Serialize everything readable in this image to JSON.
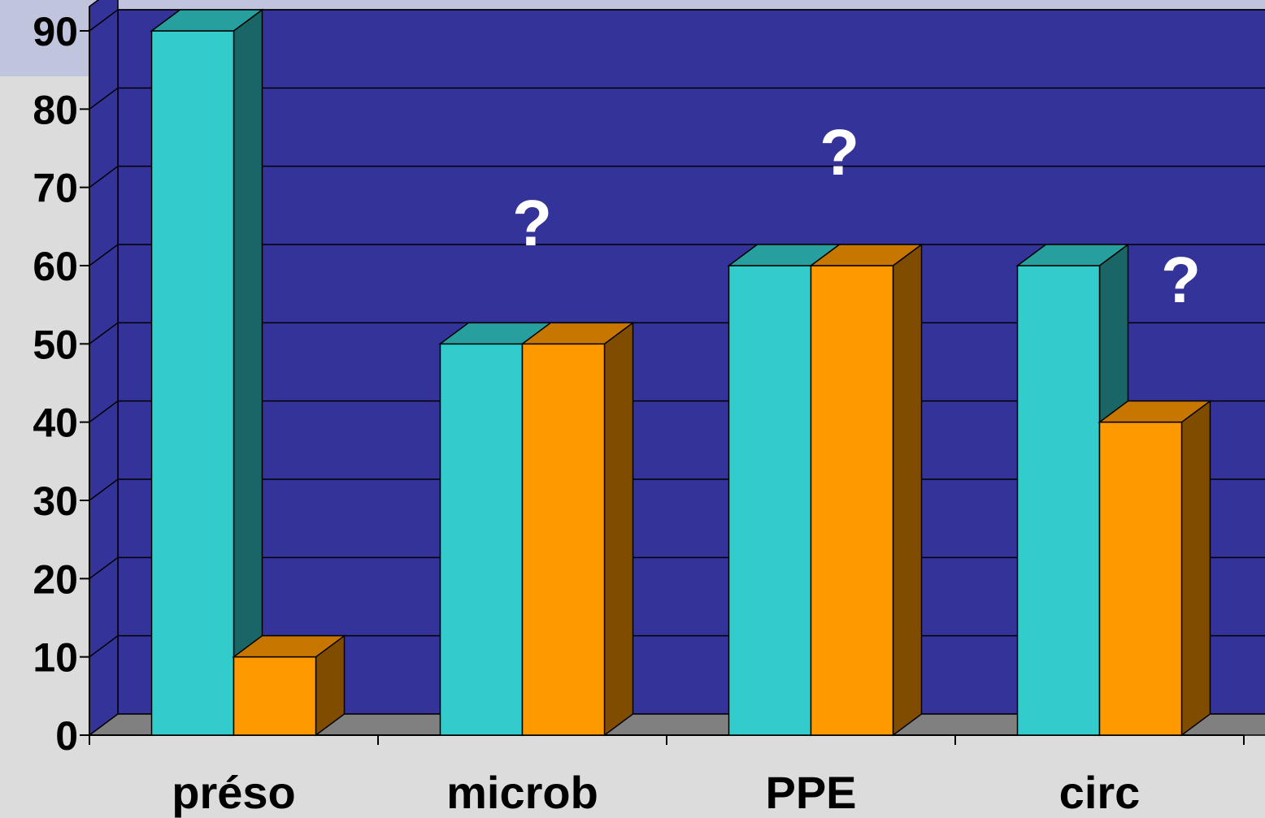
{
  "chart_data": {
    "type": "bar",
    "categories": [
      "préso",
      "microb",
      "PPE",
      "circ"
    ],
    "series": [
      {
        "values": [
          90,
          50,
          60,
          60
        ],
        "color": "#33cccc"
      },
      {
        "values": [
          10,
          50,
          60,
          40
        ],
        "color": "#ff9900"
      }
    ],
    "ylim": [
      0,
      90
    ],
    "y_ticks": [
      "0",
      "10",
      "20",
      "30",
      "40",
      "50",
      "60",
      "70",
      "80",
      "90"
    ],
    "annotations": [
      {
        "text": "?",
        "category": "microb"
      },
      {
        "text": "?",
        "category": "PPE"
      },
      {
        "text": "?",
        "category": "circ"
      }
    ],
    "grid": true,
    "style": "3d-clustered",
    "colors": {
      "plot_background": "#333399",
      "floor": "#808080",
      "page_background": "#dcdcdc"
    }
  }
}
